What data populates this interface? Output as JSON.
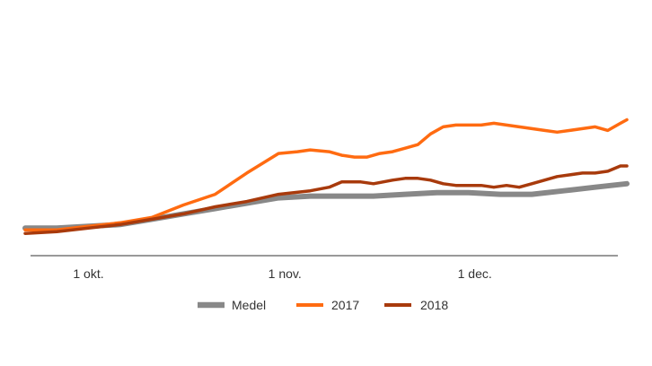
{
  "chart_data": {
    "type": "line",
    "title": "",
    "xlabel": "",
    "ylabel": "",
    "x_range": [
      0,
      95
    ],
    "ylim": [
      0,
      100
    ],
    "grid": false,
    "legend_position": "bottom-center",
    "x_ticks": [
      {
        "label": "1 okt.",
        "x": 10
      },
      {
        "label": "1 nov.",
        "x": 41
      },
      {
        "label": "1 dec.",
        "x": 71
      }
    ],
    "series": [
      {
        "name": "Medel",
        "color": "#888888",
        "x": [
          0,
          5,
          10,
          15,
          20,
          25,
          30,
          35,
          40,
          45,
          50,
          55,
          60,
          65,
          70,
          75,
          80,
          85,
          90,
          95
        ],
        "values": [
          13,
          13,
          14,
          15,
          18,
          21,
          24,
          27,
          30,
          31,
          31,
          31,
          32,
          33,
          33,
          32,
          32,
          34,
          36,
          38
        ]
      },
      {
        "name": "2017",
        "color": "#ff6b11",
        "x": [
          0,
          5,
          10,
          15,
          20,
          25,
          30,
          35,
          40,
          43,
          45,
          48,
          50,
          52,
          54,
          56,
          58,
          60,
          62,
          64,
          66,
          68,
          70,
          72,
          74,
          76,
          78,
          80,
          82,
          84,
          86,
          88,
          90,
          92,
          94,
          95
        ],
        "values": [
          12,
          12,
          14,
          16,
          19,
          26,
          32,
          44,
          55,
          56,
          57,
          56,
          54,
          53,
          53,
          55,
          56,
          58,
          60,
          66,
          70,
          71,
          71,
          71,
          72,
          71,
          70,
          69,
          68,
          67,
          68,
          69,
          70,
          68,
          72,
          74
        ]
      },
      {
        "name": "2018",
        "color": "#a83a0c",
        "x": [
          0,
          5,
          10,
          15,
          20,
          25,
          30,
          35,
          40,
          45,
          48,
          50,
          53,
          55,
          58,
          60,
          62,
          64,
          66,
          68,
          70,
          72,
          74,
          76,
          78,
          80,
          82,
          84,
          86,
          88,
          90,
          92,
          94,
          95
        ],
        "values": [
          10,
          11,
          13,
          15,
          18,
          21,
          25,
          28,
          32,
          34,
          36,
          39,
          39,
          38,
          40,
          41,
          41,
          40,
          38,
          37,
          37,
          37,
          36,
          37,
          36,
          38,
          40,
          42,
          43,
          44,
          44,
          45,
          48,
          48
        ]
      }
    ]
  }
}
